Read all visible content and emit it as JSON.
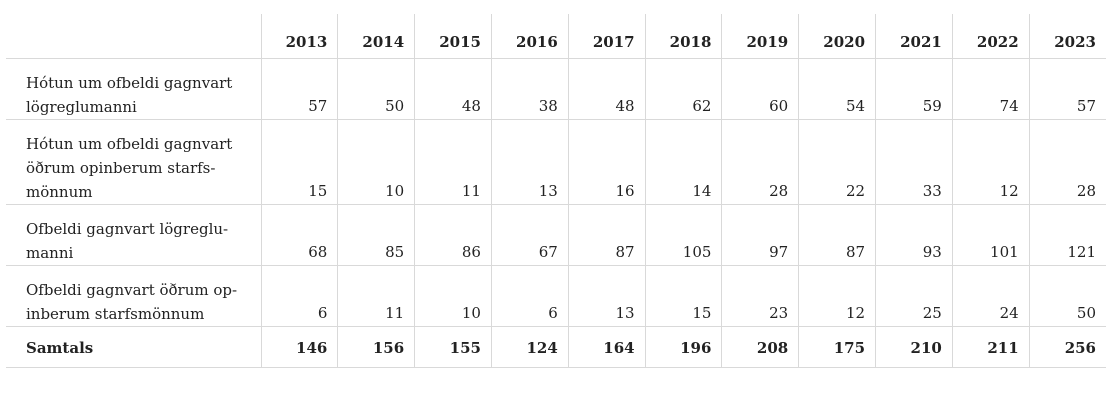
{
  "table": {
    "columns": [
      "",
      "2013",
      "2014",
      "2015",
      "2016",
      "2017",
      "2018",
      "2019",
      "2020",
      "2021",
      "2022",
      "2023"
    ],
    "rows": [
      {
        "label_lines": [
          "Hótun um ofbeldi gagnvart",
          "lögreglumanni"
        ],
        "values": [
          "57",
          "50",
          "48",
          "38",
          "48",
          "62",
          "60",
          "54",
          "59",
          "74",
          "57"
        ]
      },
      {
        "label_lines": [
          "Hótun um ofbeldi gagnvart",
          "öðrum opinberum starfs-",
          "mönnum"
        ],
        "values": [
          "15",
          "10",
          "11",
          "13",
          "16",
          "14",
          "28",
          "22",
          "33",
          "12",
          "28"
        ]
      },
      {
        "label_lines": [
          "Ofbeldi gagnvart lögreglu-",
          "manni"
        ],
        "values": [
          "68",
          "85",
          "86",
          "67",
          "87",
          "105",
          "97",
          "87",
          "93",
          "101",
          "121"
        ]
      },
      {
        "label_lines": [
          "Ofbeldi gagnvart öðrum op-",
          "inberum starfsmönnum"
        ],
        "values": [
          "6",
          "11",
          "10",
          "6",
          "13",
          "15",
          "23",
          "12",
          "25",
          "24",
          "50"
        ]
      }
    ],
    "total": {
      "label": "Samtals",
      "values": [
        "146",
        "156",
        "155",
        "124",
        "164",
        "196",
        "208",
        "175",
        "210",
        "211",
        "256"
      ]
    }
  }
}
